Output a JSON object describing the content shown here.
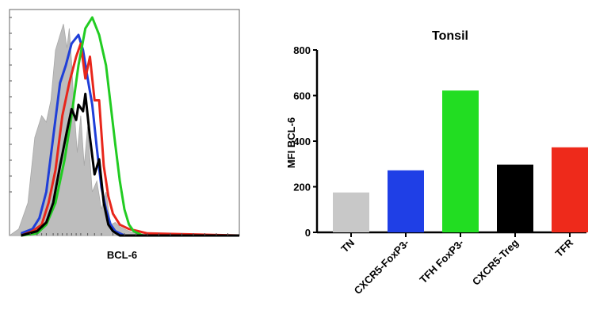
{
  "chart_data": [
    {
      "type": "area",
      "title": "",
      "xlabel": "BCL-6",
      "ylabel": "",
      "grid": false,
      "legend": "none",
      "series": [
        {
          "color": "#bdbdbd",
          "fill": true,
          "x": [
            0,
            0.04,
            0.08,
            0.11,
            0.14,
            0.16,
            0.18,
            0.2,
            0.22,
            0.235,
            0.25,
            0.26,
            0.27,
            0.28,
            0.295,
            0.31,
            0.325,
            0.34,
            0.36,
            0.38,
            0.4,
            0.42,
            0.44,
            0.46,
            0.48,
            0.5,
            0.52,
            0.55,
            0.6,
            1
          ],
          "y": [
            0,
            0.03,
            0.15,
            0.45,
            0.55,
            0.52,
            0.62,
            0.85,
            0.92,
            0.97,
            0.86,
            0.95,
            0.8,
            0.6,
            0.38,
            0.55,
            0.32,
            0.5,
            0.2,
            0.25,
            0.12,
            0.2,
            0.05,
            0.06,
            0.04,
            0.03,
            0.02,
            0.01,
            0.005,
            0
          ]
        },
        {
          "color": "#1f3fd8",
          "fill": false,
          "x": [
            0.05,
            0.1,
            0.13,
            0.16,
            0.19,
            0.22,
            0.245,
            0.27,
            0.3,
            0.32,
            0.34,
            0.36,
            0.38,
            0.4,
            0.42,
            0.44,
            0.46,
            0.5,
            1
          ],
          "y": [
            0.01,
            0.03,
            0.08,
            0.2,
            0.45,
            0.7,
            0.78,
            0.88,
            0.92,
            0.85,
            0.72,
            0.6,
            0.4,
            0.22,
            0.12,
            0.05,
            0.02,
            0.0,
            0
          ]
        },
        {
          "color": "#e8261b",
          "fill": false,
          "x": [
            0.05,
            0.1,
            0.14,
            0.17,
            0.2,
            0.23,
            0.26,
            0.29,
            0.31,
            0.33,
            0.35,
            0.37,
            0.39,
            0.41,
            0.43,
            0.45,
            0.48,
            0.52,
            0.56,
            0.6,
            1
          ],
          "y": [
            0.0,
            0.02,
            0.05,
            0.15,
            0.3,
            0.55,
            0.7,
            0.82,
            0.88,
            0.72,
            0.82,
            0.62,
            0.62,
            0.32,
            0.18,
            0.1,
            0.05,
            0.03,
            0.02,
            0.01,
            0
          ]
        },
        {
          "color": "#22cc22",
          "fill": false,
          "x": [
            0.05,
            0.12,
            0.16,
            0.2,
            0.24,
            0.27,
            0.3,
            0.33,
            0.36,
            0.39,
            0.42,
            0.44,
            0.46,
            0.48,
            0.5,
            0.52,
            0.54,
            0.56,
            0.58,
            1
          ],
          "y": [
            0.0,
            0.01,
            0.05,
            0.15,
            0.35,
            0.55,
            0.78,
            0.95,
            1.0,
            0.92,
            0.78,
            0.6,
            0.42,
            0.25,
            0.12,
            0.05,
            0.02,
            0.01,
            0.0,
            0
          ]
        },
        {
          "color": "#000000",
          "fill": false,
          "x": [
            0.05,
            0.12,
            0.16,
            0.19,
            0.22,
            0.25,
            0.27,
            0.29,
            0.3,
            0.32,
            0.33,
            0.35,
            0.37,
            0.39,
            0.41,
            0.43,
            0.45,
            0.48,
            1
          ],
          "y": [
            0.0,
            0.02,
            0.06,
            0.15,
            0.32,
            0.48,
            0.58,
            0.53,
            0.6,
            0.57,
            0.65,
            0.45,
            0.28,
            0.35,
            0.15,
            0.05,
            0.02,
            0.0,
            0
          ]
        }
      ]
    },
    {
      "type": "bar",
      "title": "Tonsil",
      "xlabel": "",
      "ylabel": "MFI BCL-6",
      "ylim": [
        0,
        800
      ],
      "yticks": [
        0,
        200,
        400,
        600,
        800
      ],
      "grid": false,
      "legend": "none",
      "categories": [
        "TN",
        "CXCR5-FoxP3-",
        "TFH FoxP3-",
        "CXCR5-Treg",
        "TFR"
      ],
      "values": [
        175,
        272,
        622,
        297,
        373
      ],
      "colors": [
        "#c8c8c8",
        "#1f3fe6",
        "#22dd22",
        "#000000",
        "#ee2a1b"
      ]
    }
  ]
}
